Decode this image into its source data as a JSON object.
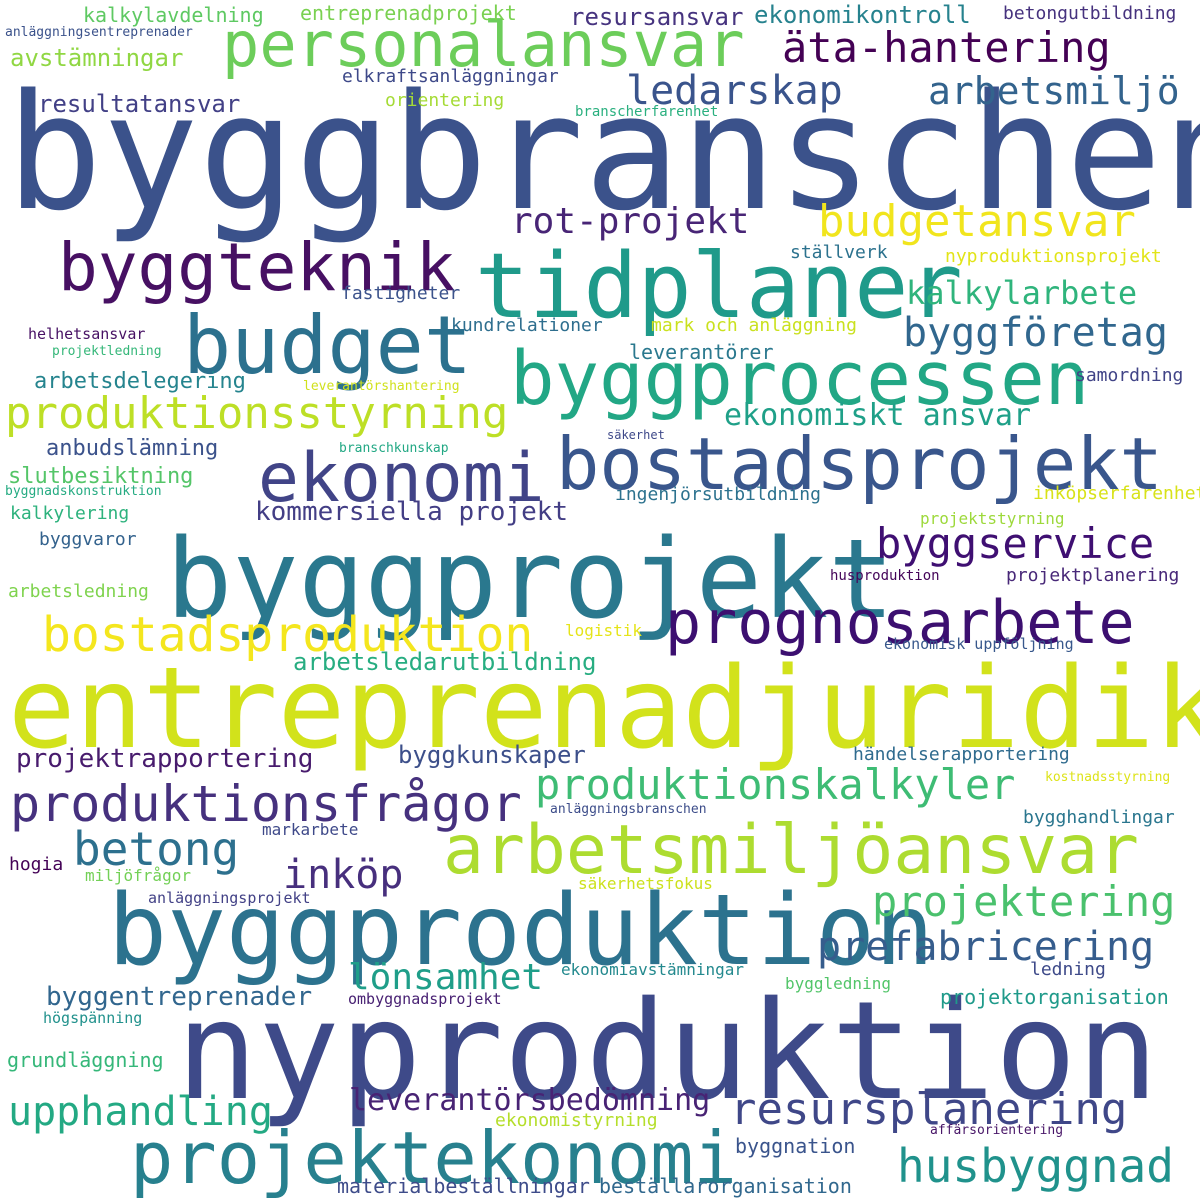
{
  "words": [
    {
      "text": "byggbranschen",
      "color": "#3b528b"
    },
    {
      "text": "entreprenadjuridik",
      "color": "#d2e21b"
    },
    {
      "text": "nyproduktion",
      "color": "#3e4a89"
    },
    {
      "text": "byggprojekt",
      "color": "#2a788e"
    },
    {
      "text": "byggproduktion",
      "color": "#2c728e"
    },
    {
      "text": "tidplaner",
      "color": "#1f9a8a"
    },
    {
      "text": "byggprocessen",
      "color": "#22a785"
    },
    {
      "text": "bostadsprojekt",
      "color": "#39568c"
    },
    {
      "text": "personalansvar",
      "color": "#6ccd5a"
    },
    {
      "text": "arbetsmiljöansvar",
      "color": "#addc30"
    },
    {
      "text": "projektekonomi",
      "color": "#27808e"
    },
    {
      "text": "budget",
      "color": "#2c718e"
    },
    {
      "text": "byggteknik",
      "color": "#471063"
    },
    {
      "text": "ekonomi",
      "color": "#414487"
    },
    {
      "text": "prognosarbete",
      "color": "#3c0f70"
    },
    {
      "text": "bostadsproduktion",
      "color": "#f4e61e"
    },
    {
      "text": "produktionsfrågor",
      "color": "#46317e"
    },
    {
      "text": "produktionsstyrning",
      "color": "#bddf26"
    },
    {
      "text": "budgetansvar",
      "color": "#f1e51d"
    },
    {
      "text": "äta-hantering",
      "color": "#440154"
    },
    {
      "text": "byggservice",
      "color": "#3f0f72"
    },
    {
      "text": "byggföretag",
      "color": "#31678e"
    },
    {
      "text": "produktionskalkyler",
      "color": "#3ebc74"
    },
    {
      "text": "husbyggnad",
      "color": "#20928c"
    },
    {
      "text": "upphandling",
      "color": "#23a983"
    },
    {
      "text": "betong",
      "color": "#2d708e"
    },
    {
      "text": "ledarskap",
      "color": "#3a548c"
    },
    {
      "text": "projektering",
      "color": "#4ac16d"
    },
    {
      "text": "prefabricering",
      "color": "#365d8d"
    },
    {
      "text": "resursplanering",
      "color": "#3f4788"
    },
    {
      "text": "rot-projekt",
      "color": "#482576"
    },
    {
      "text": "arbetsmiljö",
      "color": "#33638d"
    },
    {
      "text": "kalkylarbete",
      "color": "#2fb47c"
    },
    {
      "text": "inköp",
      "color": "#472f7d"
    },
    {
      "text": "lönsamhet",
      "color": "#1f9e89"
    },
    {
      "text": "ekonomiskt ansvar",
      "color": "#1fa088"
    },
    {
      "text": "leverantörsbedömning",
      "color": "#482374"
    },
    {
      "text": "kommersiella projekt",
      "color": "#433e85"
    },
    {
      "text": "byggentreprenader",
      "color": "#31668e"
    },
    {
      "text": "projektrapportering",
      "color": "#481b6d"
    },
    {
      "text": "arbetsledarutbildning",
      "color": "#27ad81"
    },
    {
      "text": "byggkunskaper",
      "color": "#3c4f8a"
    },
    {
      "text": "resultatansvar",
      "color": "#424086"
    },
    {
      "text": "resursansvar",
      "color": "#46337f"
    },
    {
      "text": "ekonomikontroll",
      "color": "#26828e"
    },
    {
      "text": "avstämningar",
      "color": "#90d743"
    },
    {
      "text": "entreprenadprojekt",
      "color": "#7ad151"
    },
    {
      "text": "kalkylavdelning",
      "color": "#5ec962"
    },
    {
      "text": "arbetsdelegering",
      "color": "#25848e"
    },
    {
      "text": "anbudslämning",
      "color": "#3b528b"
    },
    {
      "text": "slutbesiktning",
      "color": "#54c568"
    },
    {
      "text": "leverantörer",
      "color": "#2a788e"
    },
    {
      "text": "grundläggning",
      "color": "#35b779"
    },
    {
      "text": "projektorganisation",
      "color": "#1f9a8a"
    },
    {
      "text": "ekonomistyrning",
      "color": "#b5de2b"
    },
    {
      "text": "materialbeställningar",
      "color": "#3e4c8a"
    },
    {
      "text": "beställarorganisation",
      "color": "#31688e"
    },
    {
      "text": "byggnation",
      "color": "#3a548c"
    },
    {
      "text": "mark och anläggning",
      "color": "#cae11f"
    },
    {
      "text": "kundrelationer",
      "color": "#2e6e8e"
    },
    {
      "text": "fastigheter",
      "color": "#3b528b"
    },
    {
      "text": "ställverk",
      "color": "#2c728e"
    },
    {
      "text": "nyproduktionsprojekt",
      "color": "#e2e418"
    },
    {
      "text": "samordning",
      "color": "#414487"
    },
    {
      "text": "elkraftsanläggningar",
      "color": "#3e4989"
    },
    {
      "text": "orientering",
      "color": "#a5db36"
    },
    {
      "text": "branscherfarenhet",
      "color": "#2ab07f"
    },
    {
      "text": "betongutbildning",
      "color": "#46327e"
    },
    {
      "text": "ingenjörsutbildning",
      "color": "#2c728e"
    },
    {
      "text": "inköpserfarenhet",
      "color": "#d8e219"
    },
    {
      "text": "projektstyrning",
      "color": "#9dd93b"
    },
    {
      "text": "kalkylering",
      "color": "#2db27d"
    },
    {
      "text": "byggvaror",
      "color": "#33628d"
    },
    {
      "text": "arbetsledning",
      "color": "#7fd34e"
    },
    {
      "text": "husproduktion",
      "color": "#450559"
    },
    {
      "text": "projektplanering",
      "color": "#482878"
    },
    {
      "text": "logistik",
      "color": "#e5e419"
    },
    {
      "text": "ekonomisk uppföljning",
      "color": "#38588c"
    },
    {
      "text": "händelserapportering",
      "color": "#2f6b8e"
    },
    {
      "text": "kostnadsstyrning",
      "color": "#dde318"
    },
    {
      "text": "anläggningsbranschen",
      "color": "#3d4d8a"
    },
    {
      "text": "markarbete",
      "color": "#3e4989"
    },
    {
      "text": "bygghandlingar",
      "color": "#2a768e"
    },
    {
      "text": "hogia",
      "color": "#440256"
    },
    {
      "text": "miljöfrågor",
      "color": "#73d056"
    },
    {
      "text": "säkerhetsfokus",
      "color": "#cde11d"
    },
    {
      "text": "anläggningsprojekt",
      "color": "#424186"
    },
    {
      "text": "ekonomiavstämningar",
      "color": "#23898e"
    },
    {
      "text": "byggledning",
      "color": "#52c569"
    },
    {
      "text": "ledning",
      "color": "#3e4a89"
    },
    {
      "text": "ombyggnadsprojekt",
      "color": "#482173"
    },
    {
      "text": "högspänning",
      "color": "#21918c"
    },
    {
      "text": "affärsorientering",
      "color": "#481668"
    },
    {
      "text": "helhetsansvar",
      "color": "#471164"
    },
    {
      "text": "projektledning",
      "color": "#35b779"
    },
    {
      "text": "leverantörshantering",
      "color": "#d0e11c"
    },
    {
      "text": "branschkunskap",
      "color": "#22a884"
    },
    {
      "text": "säkerhet",
      "color": "#3e4989"
    },
    {
      "text": "byggnadskonstruktion",
      "color": "#25ab82"
    },
    {
      "text": "anläggningsentreprenader",
      "color": "#3b528b"
    }
  ]
}
